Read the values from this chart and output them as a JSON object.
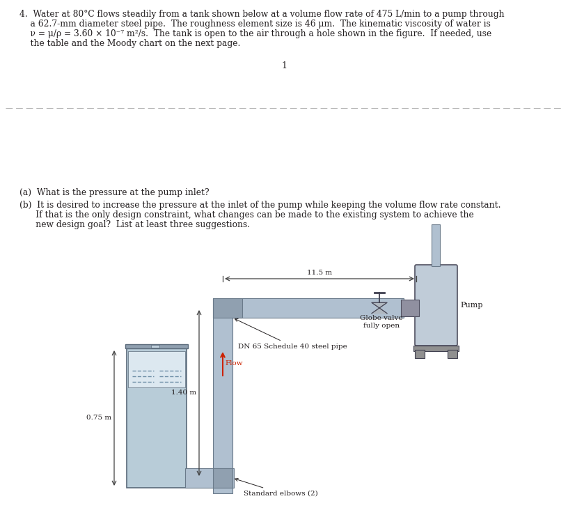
{
  "line1": "4.  Water at 80°C flows steadily from a tank shown below at a volume flow rate of 475 L/min to a pump through",
  "line2": "    a 62.7-mm diameter steel pipe.  The roughness element size is 46 μm.  The kinematic viscosity of water is",
  "line3": "    ν = μ/ρ = 3.60 × 10⁻⁷ m²/s.  The tank is open to the air through a hole shown in the figure.  If needed, use",
  "line4": "    the table and the Moody chart on the next page.",
  "page_number": "1",
  "part_a": "(a)  What is the pressure at the pump inlet?",
  "part_b1": "(b)  It is desired to increase the pressure at the inlet of the pump while keeping the volume flow rate constant.",
  "part_b2": "      If that is the only design constraint, what changes can be made to the existing system to achieve the",
  "part_b3": "      new design goal?  List at least three suggestions.",
  "dim_11_5": "11.5 m",
  "label_pump": "Pump",
  "label_globe_valve1": "Globe valve",
  "label_globe_valve2": "fully open",
  "label_flow": "Flow",
  "label_pipe": "DN 65 Schedule 40 steel pipe",
  "label_elbows": "Standard elbows (2)",
  "label_140": "1.40 m",
  "label_075": "0.75 m",
  "bg_color": "#ffffff",
  "text_color": "#231f20",
  "pipe_fill": "#b0c0d0",
  "pipe_edge": "#6a7a8a",
  "pipe_dark_fill": "#90a0b0",
  "tank_water_fill": "#b8ccd8",
  "pump_fill": "#c0ccd8",
  "pump_edge": "#505060",
  "sep_line_color": "#b0b0b0",
  "flow_arrow_color": "#cc2200",
  "dim_color": "#404040"
}
